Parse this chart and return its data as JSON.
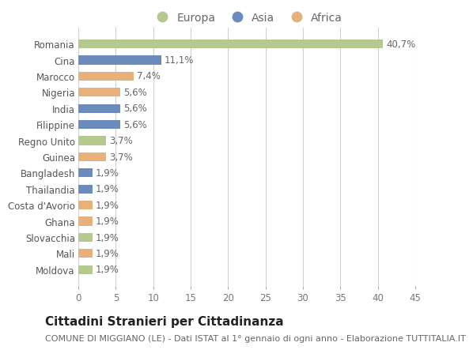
{
  "categories": [
    "Moldova",
    "Mali",
    "Slovacchia",
    "Ghana",
    "Costa d'Avorio",
    "Thailandia",
    "Bangladesh",
    "Guinea",
    "Regno Unito",
    "Filippine",
    "India",
    "Nigeria",
    "Marocco",
    "Cina",
    "Romania"
  ],
  "values": [
    1.9,
    1.9,
    1.9,
    1.9,
    1.9,
    1.9,
    1.9,
    3.7,
    3.7,
    5.6,
    5.6,
    5.6,
    7.4,
    11.1,
    40.7
  ],
  "labels": [
    "1,9%",
    "1,9%",
    "1,9%",
    "1,9%",
    "1,9%",
    "1,9%",
    "1,9%",
    "3,7%",
    "3,7%",
    "5,6%",
    "5,6%",
    "5,6%",
    "7,4%",
    "11,1%",
    "40,7%"
  ],
  "colors": [
    "#b5c98e",
    "#e8b07a",
    "#b5c98e",
    "#e8b07a",
    "#e8b07a",
    "#6b8cba",
    "#6b8cba",
    "#e8b07a",
    "#b5c98e",
    "#6b8cba",
    "#6b8cba",
    "#e8b07a",
    "#e8b07a",
    "#6b8cba",
    "#b5c98e"
  ],
  "legend_labels": [
    "Europa",
    "Asia",
    "Africa"
  ],
  "legend_colors": [
    "#b5c98e",
    "#6b8cba",
    "#e8b07a"
  ],
  "title": "Cittadini Stranieri per Cittadinanza",
  "subtitle": "COMUNE DI MIGGIANO (LE) - Dati ISTAT al 1° gennaio di ogni anno - Elaborazione TUTTITALIA.IT",
  "xlim": [
    0,
    45
  ],
  "xticks": [
    0,
    5,
    10,
    15,
    20,
    25,
    30,
    35,
    40,
    45
  ],
  "bg_color": "#ffffff",
  "grid_color": "#d0d0d0",
  "bar_height": 0.55,
  "title_fontsize": 11,
  "subtitle_fontsize": 8,
  "label_fontsize": 8.5,
  "tick_fontsize": 8.5,
  "legend_fontsize": 10
}
